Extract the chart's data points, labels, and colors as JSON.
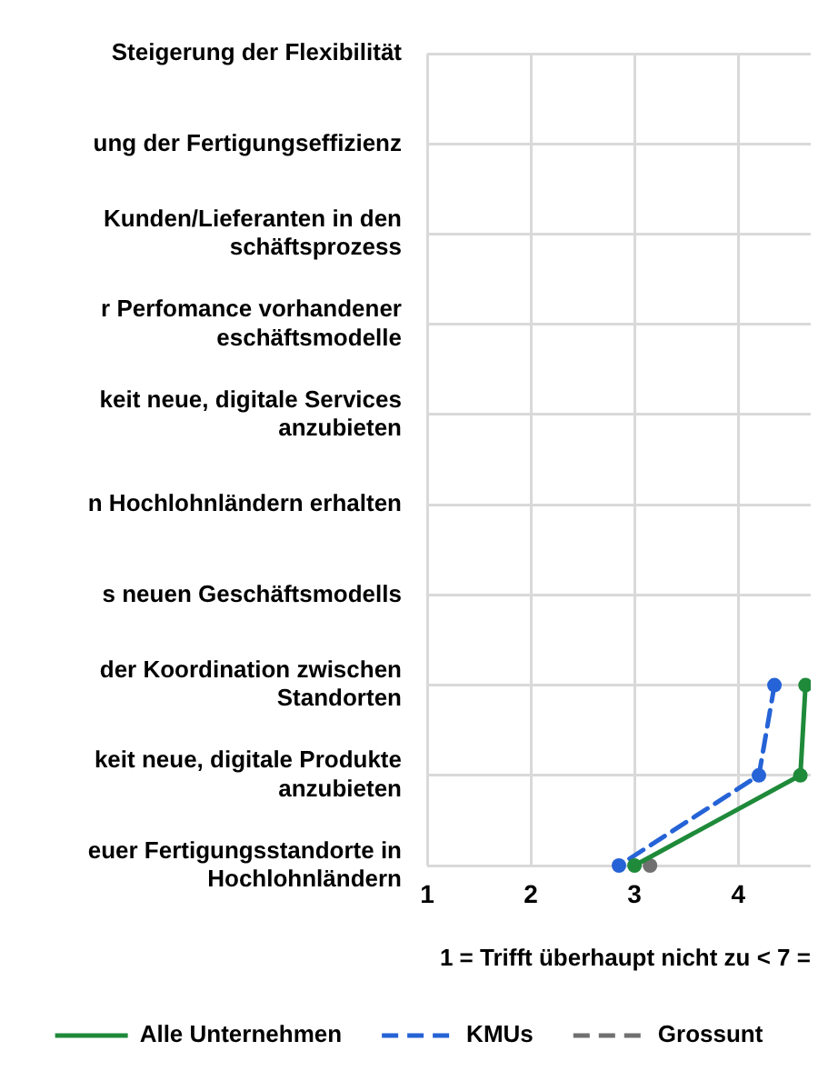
{
  "chart_data": {
    "type": "line",
    "orientation": "horizontal",
    "categories": [
      "Steigerung der Flexibilität",
      "ung der Fertigungseffizienz",
      "Kunden/Lieferanten in den\nschäftsprozess",
      "r Perfomance vorhandener\neschäftsmodelle",
      "keit neue, digitale Services\nanzubieten",
      "n Hochlohnländern erhalten",
      "s neuen Geschäftsmodells",
      "der Koordination zwischen\nStandorten",
      "keit neue, digitale Produkte\nanzubieten",
      "euer Fertigungsstandorte in\nHochlohnländern"
    ],
    "xlabel": "1 = Trifft überhaupt nicht zu < 7 =",
    "xlim": [
      1,
      4.7
    ],
    "xticks": [
      1,
      2,
      3,
      4
    ],
    "grid": true,
    "legend": "bottom",
    "marker": "circle",
    "series": [
      {
        "name": "Alle Unternehmen",
        "color": "#1e8a3a",
        "line_style": "solid",
        "values": [
          null,
          null,
          null,
          null,
          null,
          null,
          null,
          4.65,
          4.6,
          3.0
        ]
      },
      {
        "name": "KMUs",
        "color": "#2563d6",
        "line_style": "dashed",
        "values": [
          null,
          null,
          null,
          null,
          null,
          null,
          null,
          4.35,
          4.2,
          2.85
        ]
      },
      {
        "name": "Grossunt",
        "color": "#707070",
        "line_style": "dashed",
        "values": [
          null,
          null,
          null,
          null,
          null,
          null,
          null,
          null,
          null,
          3.15
        ]
      }
    ]
  }
}
